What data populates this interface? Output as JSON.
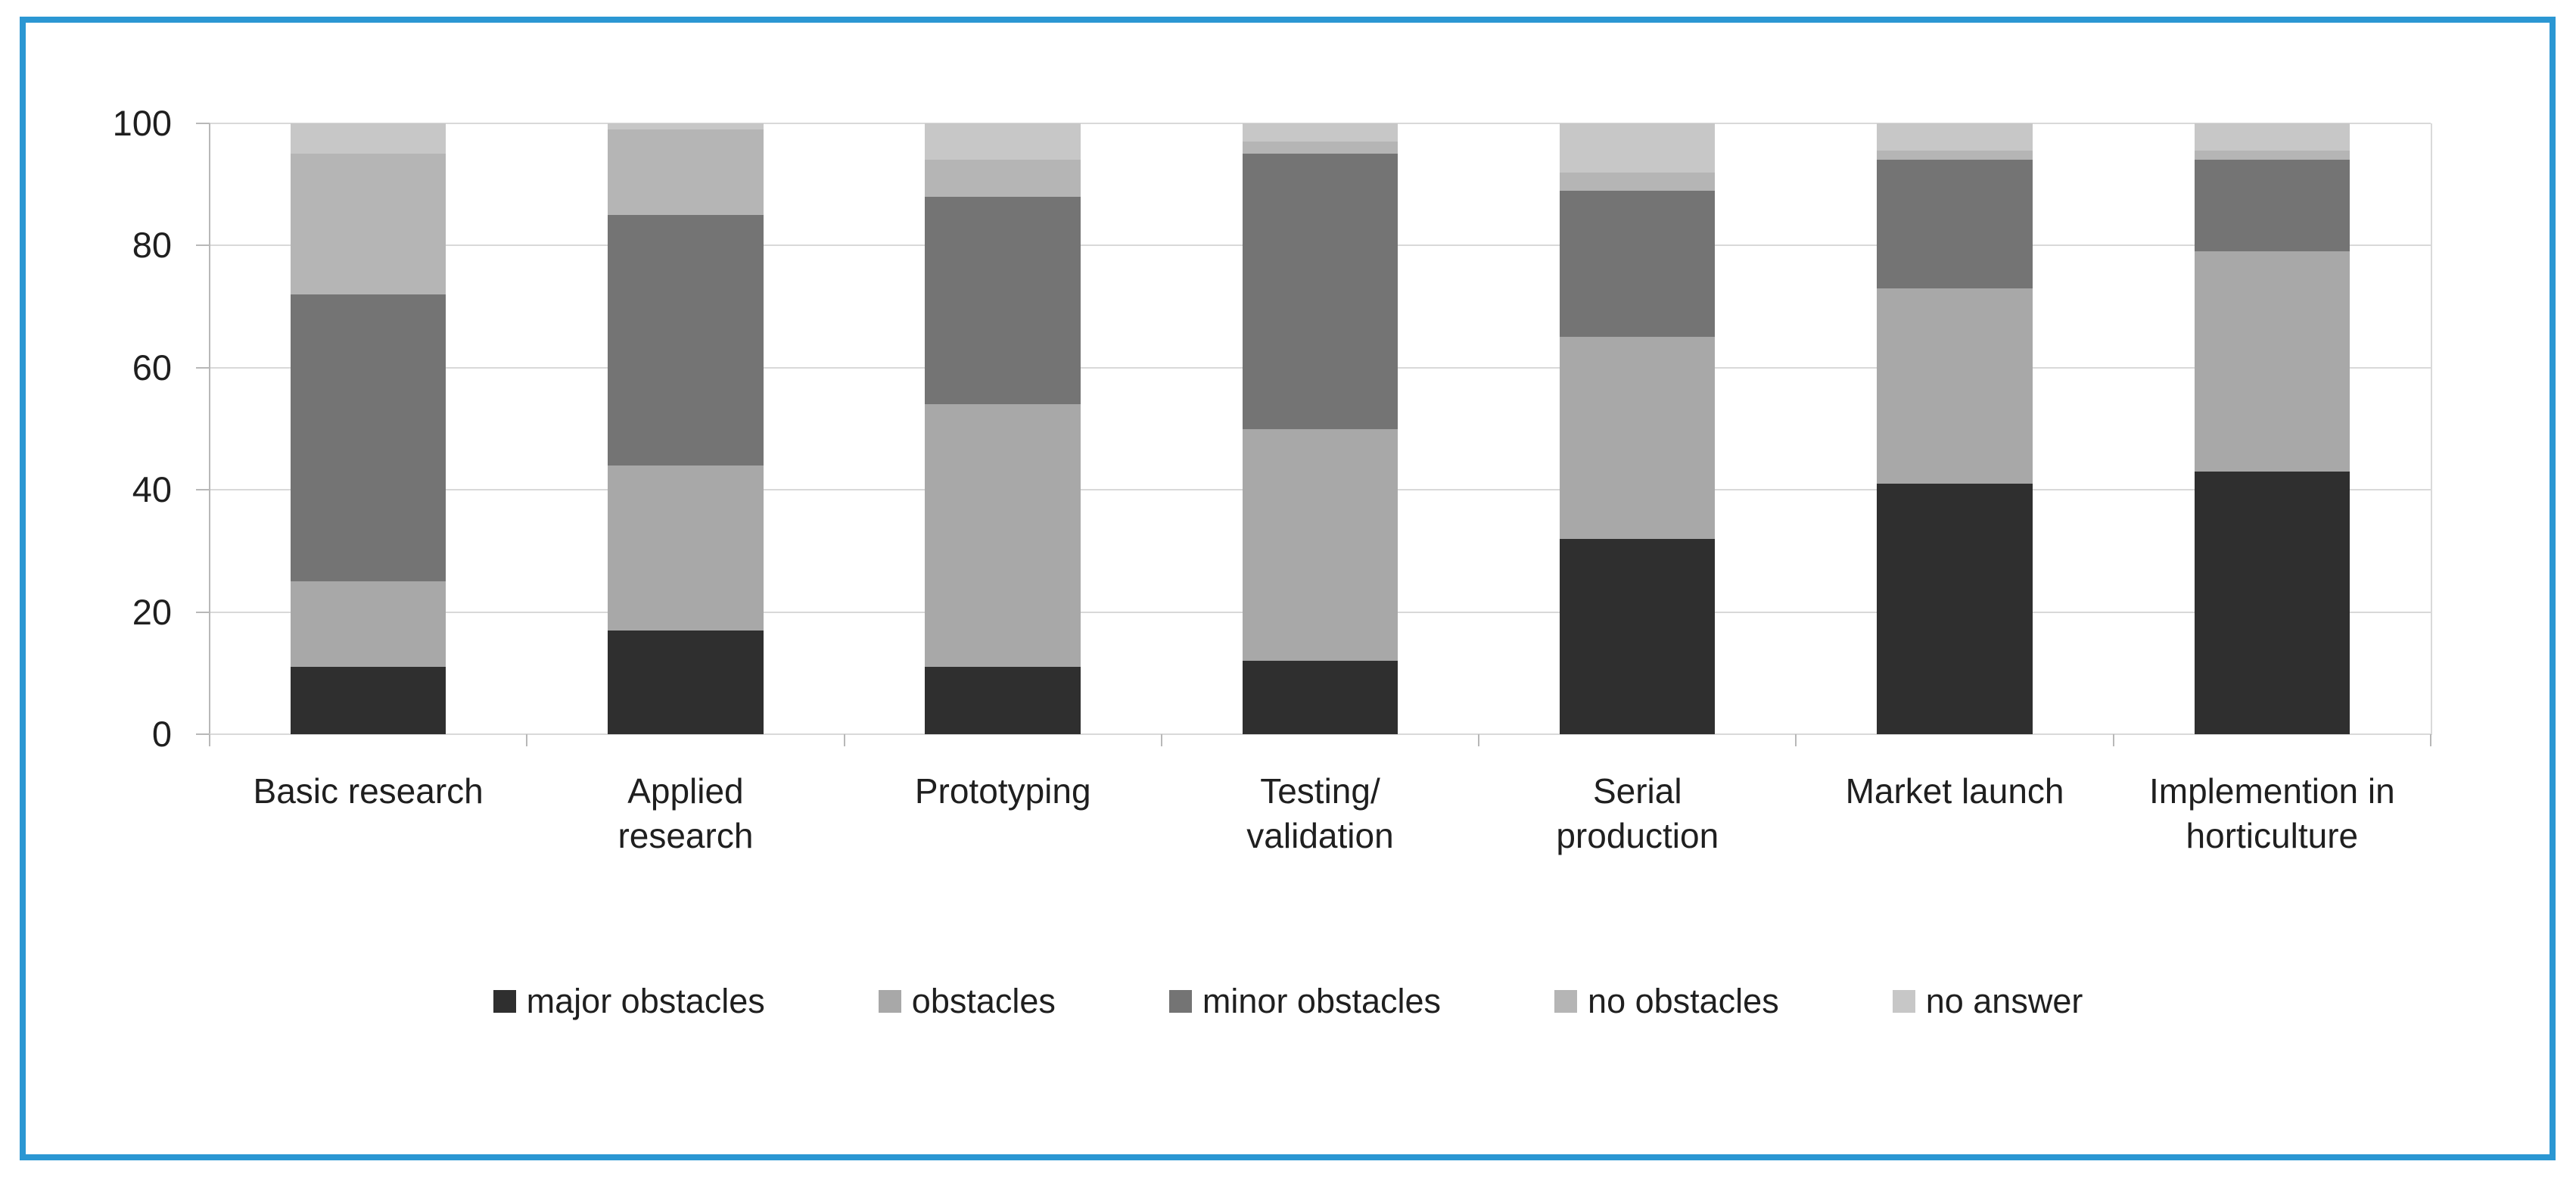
{
  "page": {
    "background": "#ffffff",
    "border_color": "#2b97d3",
    "text_color": "#1f1f1f"
  },
  "chart_data": {
    "type": "bar",
    "stacked": true,
    "stacked_total": 100,
    "title": "",
    "xlabel": "",
    "ylabel": "",
    "categories": [
      "Basic research",
      "Applied research",
      "Prototyping",
      "Testing/ validation",
      "Serial production",
      "Market launch",
      "Implemention in horticulture"
    ],
    "category_label_lines": [
      [
        "Basic research"
      ],
      [
        "Applied",
        "research"
      ],
      [
        "Prototyping"
      ],
      [
        "Testing/",
        "validation"
      ],
      [
        "Serial",
        "production"
      ],
      [
        "Market launch"
      ],
      [
        "Implemention in",
        "horticulture"
      ]
    ],
    "series": [
      {
        "name": "major obstacles",
        "color": "#2f2f2f",
        "values": [
          11,
          17,
          11,
          12,
          32,
          41,
          43
        ]
      },
      {
        "name": "obstacles",
        "color": "#a8a8a8",
        "values": [
          14,
          27,
          43,
          38,
          33,
          32,
          36
        ]
      },
      {
        "name": "minor obstacles",
        "color": "#747474",
        "values": [
          47,
          41,
          34,
          45,
          24,
          21,
          15
        ]
      },
      {
        "name": "no obstacles",
        "color": "#b5b5b5",
        "values": [
          23,
          14,
          6,
          2,
          3,
          1.5,
          1.5
        ]
      },
      {
        "name": "no answer",
        "color": "#c7c7c7",
        "values": [
          5,
          1,
          6,
          3,
          8,
          4.5,
          4.5
        ]
      }
    ],
    "y_axis": {
      "min": 0,
      "max": 100,
      "tick_interval": 20,
      "tick_labels": [
        "100",
        "80",
        "60",
        "40",
        "20",
        "0"
      ]
    },
    "grid": true,
    "grid_color": "#d9d9d9",
    "axis_color": "#b8b8b8",
    "legend_position": "bottom",
    "legend_labels": [
      "major obstacles",
      "obstacles",
      "minor obstacles",
      "no obstacles",
      "no answer"
    ]
  }
}
